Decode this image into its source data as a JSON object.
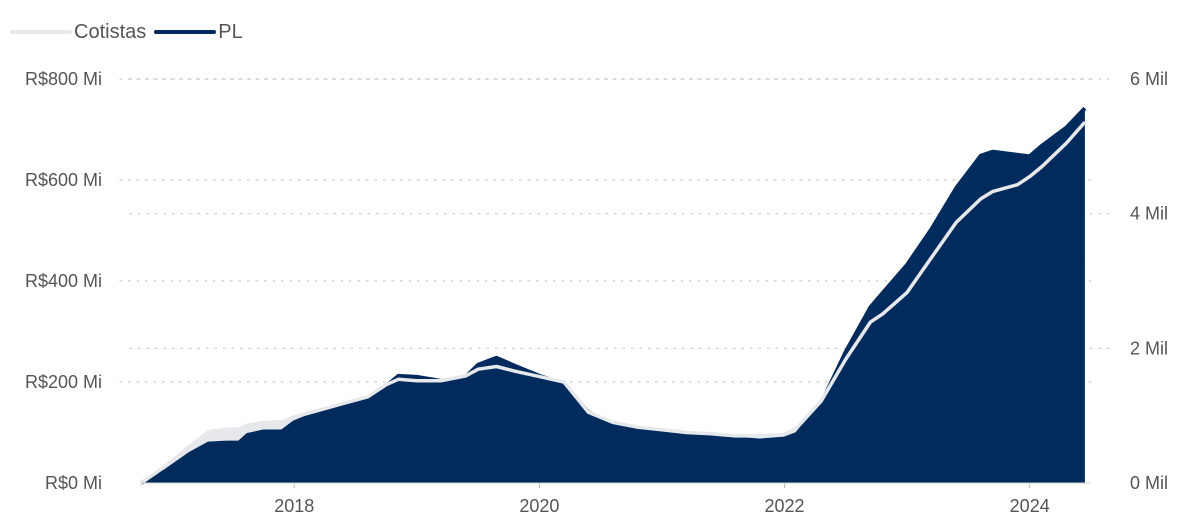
{
  "chart_data": {
    "type": "area",
    "title": "",
    "xlabel": "",
    "ylabel": "",
    "legend_position": "top-left",
    "grid": true,
    "x_ticks": [
      "2018",
      "2020",
      "2022",
      "2024"
    ],
    "x_range": [
      2016.75,
      2024.5
    ],
    "y_left": {
      "ticks": [
        "R$0 Mi",
        "R$200 Mi",
        "R$400 Mi",
        "R$600 Mi",
        "R$800 Mi"
      ],
      "range": [
        0,
        800
      ],
      "unit": "R$ Mi"
    },
    "y_right": {
      "ticks": [
        "0 Mil",
        "2 Mil",
        "4 Mil",
        "6 Mil"
      ],
      "range": [
        0,
        6
      ],
      "unit": "Mil"
    },
    "series": [
      {
        "name": "Cotistas",
        "axis": "right",
        "color": "#e6e8ec",
        "style": "line",
        "x": [
          2016.75,
          2016.95,
          2017.15,
          2017.3,
          2017.45,
          2017.55,
          2017.62,
          2017.75,
          2017.9,
          2018.0,
          2018.2,
          2018.4,
          2018.6,
          2018.75,
          2018.85,
          2019.0,
          2019.2,
          2019.4,
          2019.5,
          2019.65,
          2019.8,
          2020.0,
          2020.2,
          2020.4,
          2020.6,
          2020.8,
          2021.0,
          2021.2,
          2021.4,
          2021.6,
          2021.8,
          2022.0,
          2022.1,
          2022.3,
          2022.5,
          2022.7,
          2022.8,
          2023.0,
          2023.2,
          2023.4,
          2023.6,
          2023.7,
          2023.9,
          2024.0,
          2024.1,
          2024.3,
          2024.45
        ],
        "values": [
          0.0,
          0.25,
          0.55,
          0.76,
          0.8,
          0.8,
          0.86,
          0.9,
          0.91,
          0.98,
          1.08,
          1.18,
          1.28,
          1.46,
          1.54,
          1.52,
          1.52,
          1.59,
          1.69,
          1.73,
          1.66,
          1.58,
          1.5,
          1.05,
          0.9,
          0.83,
          0.79,
          0.75,
          0.73,
          0.7,
          0.7,
          0.72,
          0.82,
          1.22,
          1.84,
          2.39,
          2.51,
          2.83,
          3.35,
          3.87,
          4.22,
          4.33,
          4.43,
          4.55,
          4.7,
          5.05,
          5.36
        ]
      },
      {
        "name": "PL",
        "axis": "left",
        "color": "#002b5c",
        "style": "area",
        "x": [
          2016.75,
          2016.95,
          2017.15,
          2017.3,
          2017.45,
          2017.55,
          2017.62,
          2017.75,
          2017.9,
          2018.0,
          2018.2,
          2018.4,
          2018.6,
          2018.75,
          2018.85,
          2019.0,
          2019.2,
          2019.4,
          2019.5,
          2019.65,
          2019.8,
          2020.0,
          2020.2,
          2020.4,
          2020.6,
          2020.8,
          2021.0,
          2021.2,
          2021.4,
          2021.6,
          2021.8,
          2022.0,
          2022.1,
          2022.3,
          2022.5,
          2022.7,
          2022.8,
          2023.0,
          2023.2,
          2023.4,
          2023.6,
          2023.7,
          2023.9,
          2024.0,
          2024.1,
          2024.3,
          2024.45
        ],
        "values": [
          0,
          24,
          58,
          78,
          80,
          80,
          95,
          102,
          102,
          120,
          140,
          155,
          168,
          192,
          212,
          210,
          202,
          210,
          234,
          248,
          232,
          212,
          196,
          140,
          116,
          106,
          101,
          95,
          92,
          88,
          84,
          88,
          97,
          158,
          260,
          348,
          376,
          432,
          503,
          584,
          648,
          656,
          650,
          647,
          668,
          704,
          742
        ]
      }
    ]
  }
}
